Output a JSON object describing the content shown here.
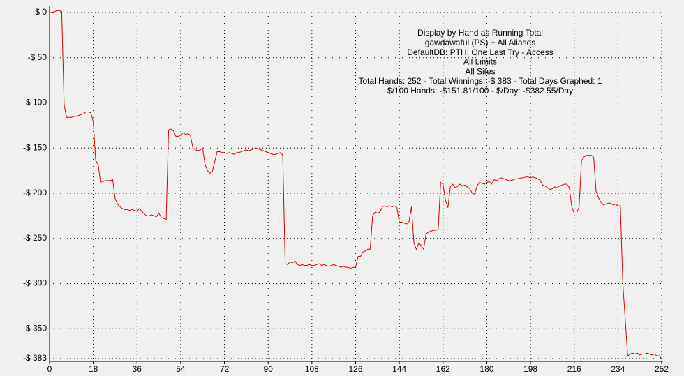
{
  "chart_data": {
    "type": "line",
    "annotations": [
      "Display by Hand as Running Total",
      "gawdawaful (PS) + All Aliases",
      "DefaultDB: PTH: One Last Try - Access",
      "All Limits",
      "All Sites",
      "Total Hands: 252 - Total Winnings: -$ 383 - Total Days Graphed: 1",
      "$/100 Hands: -$151.81/100 - $/Day: -$382.55/Day"
    ],
    "color": "#e00000",
    "x": [
      0,
      1,
      2,
      3,
      4,
      5,
      6,
      7,
      8,
      9,
      10,
      11,
      12,
      13,
      14,
      15,
      16,
      17,
      18,
      19,
      20,
      21,
      22,
      23,
      24,
      25,
      26,
      27,
      28,
      29,
      30,
      31,
      32,
      33,
      34,
      35,
      36,
      37,
      38,
      39,
      40,
      41,
      42,
      43,
      44,
      45,
      46,
      47,
      48,
      49,
      50,
      51,
      52,
      53,
      54,
      55,
      56,
      57,
      58,
      59,
      60,
      61,
      62,
      63,
      64,
      65,
      66,
      67,
      68,
      69,
      70,
      71,
      72,
      73,
      74,
      75,
      76,
      77,
      78,
      79,
      80,
      81,
      82,
      83,
      84,
      85,
      86,
      87,
      88,
      89,
      90,
      91,
      92,
      93,
      94,
      95,
      96,
      97,
      98,
      99,
      100,
      101,
      102,
      103,
      104,
      105,
      106,
      107,
      108,
      109,
      110,
      111,
      112,
      113,
      114,
      115,
      116,
      117,
      118,
      119,
      120,
      121,
      122,
      123,
      124,
      125,
      126,
      127,
      128,
      129,
      130,
      131,
      132,
      133,
      134,
      135,
      136,
      137,
      138,
      139,
      140,
      141,
      142,
      143,
      144,
      145,
      146,
      147,
      148,
      149,
      150,
      151,
      152,
      153,
      154,
      155,
      156,
      157,
      158,
      159,
      160,
      161,
      162,
      163,
      164,
      165,
      166,
      167,
      168,
      169,
      170,
      171,
      172,
      173,
      174,
      175,
      176,
      177,
      178,
      179,
      180,
      181,
      182,
      183,
      184,
      185,
      186,
      187,
      188,
      189,
      190,
      191,
      192,
      193,
      194,
      195,
      196,
      197,
      198,
      199,
      200,
      201,
      202,
      203,
      204,
      205,
      206,
      207,
      208,
      209,
      210,
      211,
      212,
      213,
      214,
      215,
      216,
      217,
      218,
      219,
      220,
      221,
      222,
      223,
      224,
      225,
      226,
      227,
      228,
      229,
      230,
      231,
      232,
      233,
      234,
      235,
      236,
      237,
      238,
      239,
      240,
      241,
      242,
      243,
      244,
      245,
      246,
      247,
      248,
      249,
      250,
      251,
      252
    ],
    "values": [
      0,
      0,
      1,
      2,
      2,
      1,
      -102,
      -116,
      -116,
      -116,
      -115,
      -115,
      -114,
      -113,
      -112,
      -110,
      -110,
      -111,
      -121,
      -164,
      -168,
      -188,
      -187,
      -186,
      -186,
      -186,
      -185,
      -206,
      -212,
      -215,
      -217,
      -218,
      -218,
      -219,
      -218,
      -219,
      -220,
      -217,
      -220,
      -223,
      -225,
      -225,
      -224,
      -225,
      -226,
      -222,
      -227,
      -228,
      -229,
      -130,
      -129,
      -131,
      -137,
      -137,
      -136,
      -133,
      -135,
      -134,
      -136,
      -150,
      -152,
      -153,
      -152,
      -150,
      -168,
      -175,
      -178,
      -176,
      -165,
      -154,
      -154,
      -155,
      -155,
      -156,
      -155,
      -156,
      -157,
      -155,
      -155,
      -154,
      -153,
      -152,
      -153,
      -152,
      -151,
      -150,
      -151,
      -152,
      -153,
      -154,
      -155,
      -156,
      -157,
      -157,
      -156,
      -155,
      -158,
      -278,
      -279,
      -276,
      -277,
      -275,
      -279,
      -280,
      -279,
      -280,
      -280,
      -279,
      -280,
      -280,
      -279,
      -278,
      -280,
      -279,
      -280,
      -281,
      -280,
      -279,
      -280,
      -281,
      -282,
      -281,
      -282,
      -282,
      -283,
      -282,
      -282,
      -270,
      -270,
      -265,
      -264,
      -262,
      -262,
      -225,
      -221,
      -222,
      -221,
      -215,
      -214,
      -215,
      -214,
      -215,
      -214,
      -216,
      -232,
      -232,
      -233,
      -234,
      -231,
      -215,
      -255,
      -262,
      -255,
      -258,
      -262,
      -245,
      -243,
      -242,
      -241,
      -241,
      -240,
      -188,
      -190,
      -208,
      -216,
      -193,
      -190,
      -194,
      -192,
      -190,
      -192,
      -191,
      -193,
      -195,
      -200,
      -201,
      -192,
      -188,
      -189,
      -190,
      -188,
      -187,
      -190,
      -185,
      -186,
      -184,
      -183,
      -184,
      -185,
      -186,
      -186,
      -185,
      -184,
      -184,
      -183,
      -183,
      -182,
      -182,
      -183,
      -182,
      -183,
      -184,
      -186,
      -191,
      -192,
      -194,
      -196,
      -195,
      -193,
      -194,
      -192,
      -191,
      -190,
      -190,
      -194,
      -215,
      -222,
      -222,
      -215,
      -164,
      -160,
      -158,
      -158,
      -158,
      -160,
      -198,
      -205,
      -210,
      -213,
      -212,
      -211,
      -211,
      -213,
      -212,
      -214,
      -214,
      -300,
      -340,
      -380,
      -378,
      -377,
      -378,
      -377,
      -379,
      -378,
      -378,
      -377,
      -378,
      -379,
      -378,
      -380,
      -380,
      -383
    ],
    "xlim": [
      0,
      252
    ],
    "xticks": [
      0,
      18,
      36,
      54,
      72,
      90,
      108,
      126,
      144,
      162,
      180,
      198,
      216,
      234,
      252
    ],
    "ylim": [
      -383,
      0
    ],
    "yticks": [
      {
        "value": 0,
        "label": "$ 0"
      },
      {
        "value": -50,
        "label": "-$ 50"
      },
      {
        "value": -100,
        "label": "-$ 100"
      },
      {
        "value": -150,
        "label": "-$ 150"
      },
      {
        "value": -200,
        "label": "-$ 200"
      },
      {
        "value": -250,
        "label": "-$ 250"
      },
      {
        "value": -300,
        "label": "-$ 300"
      },
      {
        "value": -350,
        "label": "-$ 350"
      },
      {
        "value": -383,
        "label": "-$ 383"
      }
    ],
    "grid": true
  }
}
